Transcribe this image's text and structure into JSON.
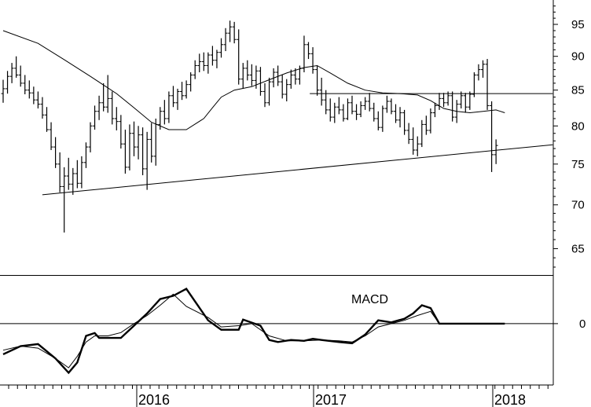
{
  "chart_data": [
    {
      "type": "bar",
      "panel": "price",
      "title": "",
      "xlabel": "",
      "ylabel": "",
      "ylim": [
        62,
        99
      ],
      "ytick_labels": [
        "65",
        "70",
        "75",
        "80",
        "85",
        "90",
        "95"
      ],
      "ytick_values": [
        65,
        70,
        75,
        80,
        85,
        90,
        95
      ],
      "xtick_labels": [
        "2016",
        "2017",
        "2018"
      ],
      "grid": false,
      "ohlc_weekly_approx": [
        [
          84.5,
          86.5,
          83.2,
          85.2
        ],
        [
          85.2,
          87.8,
          84.5,
          87.0
        ],
        [
          87.0,
          89.0,
          86.0,
          88.2
        ],
        [
          88.2,
          90.0,
          86.8,
          87.2
        ],
        [
          87.2,
          88.6,
          85.5,
          86.0
        ],
        [
          86.0,
          87.2,
          84.4,
          85.0
        ],
        [
          85.0,
          86.4,
          83.8,
          84.6
        ],
        [
          84.6,
          85.5,
          83.0,
          83.6
        ],
        [
          83.6,
          84.8,
          82.4,
          83.0
        ],
        [
          83.0,
          84.0,
          81.0,
          81.5
        ],
        [
          81.5,
          82.6,
          79.2,
          79.5
        ],
        [
          79.5,
          80.5,
          76.8,
          77.2
        ],
        [
          77.2,
          78.5,
          74.5,
          75.0
        ],
        [
          75.0,
          76.5,
          71.5,
          72.2
        ],
        [
          72.2,
          74.6,
          66.8,
          73.5
        ],
        [
          73.5,
          75.8,
          71.8,
          72.5
        ],
        [
          72.5,
          74.5,
          71.2,
          73.8
        ],
        [
          73.8,
          75.5,
          72.0,
          72.6
        ],
        [
          72.6,
          76.0,
          72.0,
          75.2
        ],
        [
          75.2,
          77.8,
          74.5,
          77.2
        ],
        [
          77.2,
          80.5,
          76.5,
          80.0
        ],
        [
          80.0,
          82.8,
          79.5,
          82.0
        ],
        [
          82.0,
          84.2,
          80.8,
          83.2
        ],
        [
          83.2,
          86.0,
          82.0,
          82.6
        ],
        [
          82.6,
          87.2,
          81.8,
          83.8
        ],
        [
          83.8,
          84.8,
          80.2,
          81.0
        ],
        [
          81.0,
          82.6,
          79.4,
          80.6
        ],
        [
          80.6,
          81.5,
          77.0,
          77.6
        ],
        [
          77.6,
          79.5,
          73.8,
          74.6
        ],
        [
          74.6,
          80.2,
          74.2,
          79.0
        ],
        [
          79.0,
          80.6,
          76.0,
          77.2
        ],
        [
          77.2,
          80.0,
          75.6,
          78.8
        ],
        [
          78.8,
          79.8,
          73.6,
          74.4
        ],
        [
          74.4,
          79.2,
          71.8,
          78.2
        ],
        [
          78.2,
          80.4,
          75.2,
          76.0
        ],
        [
          76.0,
          81.0,
          74.8,
          80.2
        ],
        [
          80.2,
          82.6,
          79.5,
          82.0
        ],
        [
          82.0,
          83.6,
          80.2,
          81.0
        ],
        [
          81.0,
          84.8,
          80.4,
          84.2
        ],
        [
          84.2,
          85.6,
          82.6,
          83.2
        ],
        [
          83.2,
          85.2,
          82.2,
          84.8
        ],
        [
          84.8,
          86.2,
          83.6,
          84.2
        ],
        [
          84.2,
          86.4,
          83.8,
          85.8
        ],
        [
          85.8,
          87.6,
          84.8,
          87.2
        ],
        [
          87.2,
          89.4,
          86.6,
          88.6
        ],
        [
          88.6,
          90.4,
          87.6,
          89.2
        ],
        [
          89.2,
          90.6,
          87.8,
          88.6
        ],
        [
          88.6,
          90.6,
          87.4,
          90.2
        ],
        [
          90.2,
          91.6,
          88.6,
          89.4
        ],
        [
          89.4,
          91.0,
          88.2,
          90.6
        ],
        [
          90.6,
          92.8,
          89.8,
          91.8
        ],
        [
          91.8,
          94.4,
          90.8,
          93.6
        ],
        [
          93.6,
          95.6,
          92.2,
          94.6
        ],
        [
          94.6,
          95.4,
          92.0,
          92.6
        ],
        [
          92.6,
          94.2,
          85.8,
          86.6
        ],
        [
          86.6,
          89.0,
          85.2,
          88.2
        ],
        [
          88.2,
          89.4,
          86.4,
          87.2
        ],
        [
          87.2,
          88.8,
          85.6,
          86.4
        ],
        [
          86.4,
          88.6,
          85.2,
          87.8
        ],
        [
          87.8,
          88.4,
          84.2,
          84.8
        ],
        [
          84.8,
          86.0,
          82.6,
          83.2
        ],
        [
          83.2,
          86.8,
          82.8,
          86.2
        ],
        [
          86.2,
          88.2,
          85.4,
          87.6
        ],
        [
          87.6,
          88.6,
          85.6,
          86.2
        ],
        [
          86.2,
          87.2,
          83.8,
          84.4
        ],
        [
          84.4,
          86.6,
          83.4,
          85.8
        ],
        [
          85.8,
          88.0,
          85.2,
          87.2
        ],
        [
          87.2,
          88.2,
          85.8,
          86.6
        ],
        [
          86.6,
          88.6,
          85.8,
          88.2
        ],
        [
          88.2,
          93.2,
          87.6,
          91.8
        ],
        [
          91.8,
          92.2,
          89.6,
          90.4
        ],
        [
          90.4,
          91.4,
          87.4,
          88.0
        ],
        [
          88.0,
          88.6,
          84.2,
          85.0
        ],
        [
          85.0,
          86.8,
          82.8,
          83.6
        ],
        [
          83.6,
          85.0,
          81.6,
          82.2
        ],
        [
          82.2,
          83.8,
          80.6,
          81.2
        ],
        [
          81.2,
          83.2,
          80.4,
          82.6
        ],
        [
          82.6,
          84.0,
          81.6,
          82.2
        ],
        [
          82.2,
          83.0,
          80.6,
          81.0
        ],
        [
          81.0,
          83.8,
          80.8,
          83.2
        ],
        [
          83.2,
          84.2,
          81.6,
          82.0
        ],
        [
          82.0,
          83.0,
          80.8,
          81.6
        ],
        [
          81.6,
          83.4,
          81.2,
          82.8
        ],
        [
          82.8,
          84.0,
          82.2,
          83.4
        ],
        [
          83.4,
          84.6,
          82.0,
          82.4
        ],
        [
          82.4,
          83.2,
          80.6,
          81.0
        ],
        [
          81.0,
          82.0,
          79.4,
          79.8
        ],
        [
          79.8,
          82.8,
          79.2,
          82.4
        ],
        [
          82.4,
          84.2,
          81.8,
          83.4
        ],
        [
          83.4,
          83.8,
          81.6,
          82.0
        ],
        [
          82.0,
          83.0,
          80.4,
          80.8
        ],
        [
          80.8,
          82.6,
          79.8,
          81.8
        ],
        [
          81.8,
          82.2,
          78.8,
          79.4
        ],
        [
          79.4,
          80.4,
          77.6,
          78.2
        ],
        [
          78.2,
          79.8,
          76.2,
          76.8
        ],
        [
          76.8,
          78.6,
          76.0,
          77.6
        ],
        [
          77.6,
          80.8,
          77.2,
          80.2
        ],
        [
          80.2,
          81.4,
          78.8,
          79.4
        ],
        [
          79.4,
          82.4,
          79.0,
          81.8
        ],
        [
          81.8,
          83.2,
          81.2,
          82.8
        ],
        [
          82.8,
          84.6,
          82.2,
          83.8
        ],
        [
          83.8,
          84.6,
          82.6,
          83.2
        ],
        [
          83.2,
          84.8,
          82.8,
          84.2
        ],
        [
          84.2,
          84.8,
          80.6,
          81.2
        ],
        [
          81.2,
          83.6,
          80.4,
          83.0
        ],
        [
          83.0,
          84.8,
          82.4,
          84.2
        ],
        [
          84.2,
          84.6,
          81.8,
          82.6
        ],
        [
          82.6,
          84.8,
          82.2,
          84.4
        ],
        [
          84.4,
          87.6,
          84.0,
          87.2
        ],
        [
          87.2,
          88.8,
          86.4,
          88.0
        ],
        [
          88.0,
          89.4,
          86.8,
          88.8
        ],
        [
          88.8,
          89.6,
          82.2,
          82.8
        ],
        [
          82.8,
          83.4,
          74.0,
          76.2
        ],
        [
          76.2,
          78.2,
          75.0,
          77.4
        ]
      ],
      "series": [
        {
          "kind": "moving-average",
          "x": [
            0,
            8,
            14,
            20,
            26,
            30,
            34,
            38,
            42,
            46,
            48,
            50,
            53,
            57,
            61,
            65,
            69,
            72,
            75,
            79,
            83,
            87,
            91,
            95,
            98,
            101,
            104,
            107,
            110,
            113,
            115
          ],
          "values": [
            94,
            92,
            89.5,
            87,
            84.5,
            82.5,
            80.5,
            79.5,
            79.5,
            81,
            82.5,
            84,
            85,
            85.5,
            86.5,
            87.5,
            88.3,
            88.6,
            87.5,
            86,
            85,
            84.6,
            84.5,
            84.3,
            83.5,
            82.4,
            82,
            81.8,
            82,
            82.2,
            81.8
          ]
        },
        {
          "kind": "trendline",
          "x": [
            9,
            126
          ],
          "values": [
            71.2,
            77.5
          ]
        },
        {
          "kind": "horizontal-line",
          "x": [
            70.3,
            126
          ],
          "values": [
            84.5,
            84.5
          ]
        }
      ]
    },
    {
      "type": "line",
      "panel": "indicator",
      "title": "MACD",
      "ytick_labels": [
        "0"
      ],
      "ytick_values": [
        0
      ],
      "ylim": [
        -1.5,
        1.15
      ],
      "series": [
        {
          "kind": "macd",
          "x": [
            0,
            4,
            8,
            12,
            15,
            17,
            19,
            21,
            22,
            24,
            27,
            30,
            33,
            36,
            39,
            42,
            47,
            50,
            54,
            55,
            59,
            61,
            63,
            66,
            69,
            71,
            73,
            77,
            80,
            83,
            86,
            89,
            92,
            94,
            96,
            98,
            100,
            103,
            106,
            109,
            111,
            113,
            114,
            115
          ],
          "values": [
            -0.75,
            -0.55,
            -0.5,
            -0.85,
            -1.2,
            -0.95,
            -0.3,
            -0.23,
            -0.35,
            -0.35,
            -0.35,
            -0.05,
            0.25,
            0.6,
            0.68,
            0.85,
            0.08,
            -0.15,
            -0.15,
            0.1,
            -0.05,
            -0.4,
            -0.45,
            -0.4,
            -0.42,
            -0.37,
            -0.4,
            -0.45,
            -0.48,
            -0.27,
            0.08,
            0.03,
            0.12,
            0.25,
            0.45,
            0.38,
            0.0,
            0.0,
            0.0,
            0.0,
            0.0,
            0.0,
            0.0,
            0.0
          ]
        },
        {
          "kind": "signal",
          "x": [
            0,
            4,
            8,
            12,
            15,
            17,
            19,
            21,
            24,
            27,
            30,
            33,
            36,
            39,
            42,
            47,
            50,
            54,
            57,
            61,
            65,
            69,
            73,
            77,
            80,
            83,
            86,
            89,
            92,
            95,
            98,
            100,
            103,
            106,
            109,
            112,
            114,
            115
          ],
          "values": [
            -0.65,
            -0.55,
            -0.6,
            -0.85,
            -1.08,
            -0.8,
            -0.45,
            -0.3,
            -0.3,
            -0.22,
            0.0,
            0.2,
            0.45,
            0.72,
            0.42,
            0.15,
            -0.08,
            -0.05,
            0.0,
            -0.3,
            -0.42,
            -0.42,
            -0.4,
            -0.42,
            -0.45,
            -0.3,
            -0.08,
            0.0,
            0.08,
            0.2,
            0.3,
            0.0,
            0.0,
            0.0,
            0.0,
            0.0,
            0.0,
            0.0
          ]
        }
      ]
    }
  ]
}
